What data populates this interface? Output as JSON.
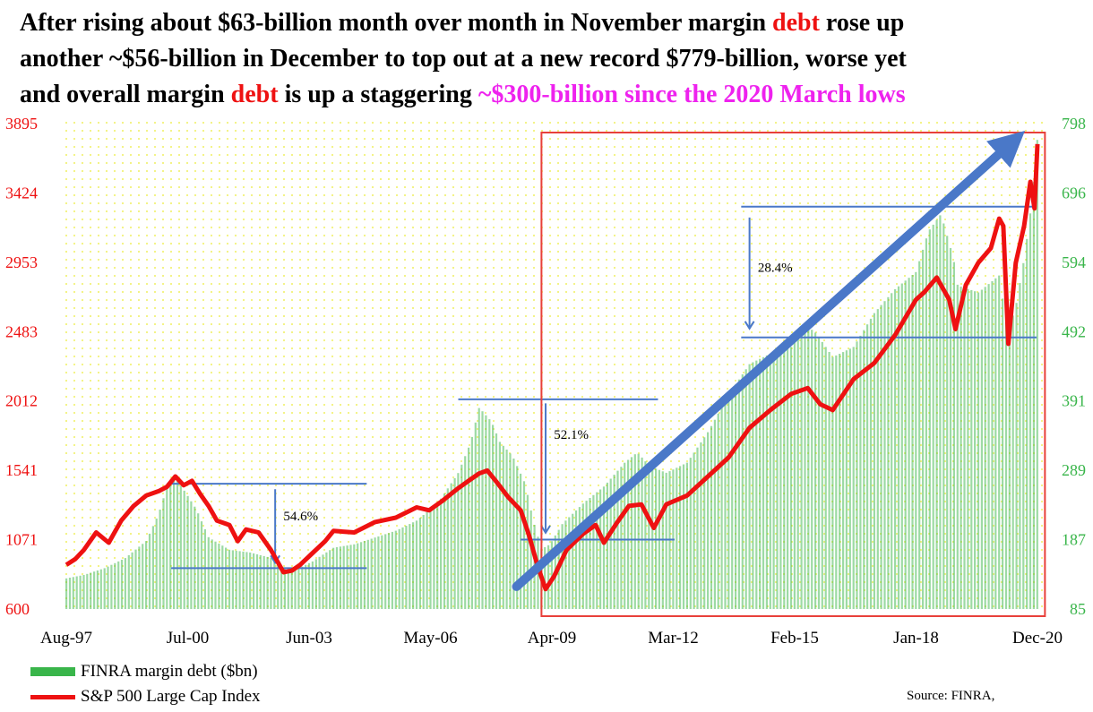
{
  "headline": {
    "line1_a": "After rising about $63-billion month over month in November margin ",
    "line1_b": "debt",
    "line1_c": " rose up",
    "line2": "another ~$56-billion in December to top out at a new record $779-billion, worse yet",
    "line3_a": "and overall margin ",
    "line3_b": "debt",
    "line3_c": " is up a staggering ",
    "line3_d": "~$300-billion since the 2020 March lows"
  },
  "colors": {
    "sp500_line": "#ee1111",
    "margin_bars": "#39b54a",
    "left_axis": "#ee1111",
    "right_axis": "#39b54a",
    "trend_arrow": "#4a78c8",
    "highlight_box": "#e8403a",
    "reference_lines": "#4a78c8",
    "background_dots": "#f2f27a"
  },
  "legend": {
    "bars": "FINRA margin debt ($bn)",
    "line": "S&P 500 Large Cap Index"
  },
  "source": "Source: FINRA,",
  "chart_data": {
    "type": "bar",
    "x_ticks": [
      "Aug-97",
      "Jul-00",
      "Jun-03",
      "May-06",
      "Apr-09",
      "Mar-12",
      "Feb-15",
      "Jan-18",
      "Dec-20"
    ],
    "x_range": [
      1997.58,
      2020.92
    ],
    "left_axis": {
      "ticks": [
        600,
        1071,
        1541,
        2012,
        2483,
        2953,
        3424,
        3895
      ],
      "range": [
        600,
        3895
      ]
    },
    "right_axis": {
      "ticks": [
        85,
        187,
        289,
        391,
        492,
        594,
        696,
        798
      ],
      "range": [
        85,
        798
      ]
    },
    "series": [
      {
        "name": "FINRA margin debt ($bn)",
        "type": "bar",
        "axis": "right",
        "x": [
          1997.58,
          1998.0,
          1998.5,
          1999.0,
          1999.5,
          1999.8,
          2000.0,
          2000.2,
          2000.4,
          2000.7,
          2001.0,
          2001.5,
          2002.0,
          2002.5,
          2002.8,
          2003.0,
          2003.5,
          2004.0,
          2004.5,
          2005.0,
          2005.5,
          2006.0,
          2006.5,
          2007.0,
          2007.3,
          2007.5,
          2007.8,
          2008.0,
          2008.3,
          2008.6,
          2008.8,
          2009.0,
          2009.2,
          2009.5,
          2010.0,
          2010.5,
          2011.0,
          2011.3,
          2011.6,
          2012.0,
          2012.5,
          2013.0,
          2013.5,
          2014.0,
          2014.5,
          2015.0,
          2015.3,
          2015.6,
          2016.0,
          2016.5,
          2017.0,
          2017.5,
          2018.0,
          2018.3,
          2018.6,
          2018.9,
          2019.0,
          2019.5,
          2020.0,
          2020.2,
          2020.4,
          2020.6,
          2020.8,
          2020.92
        ],
        "values": [
          130,
          135,
          145,
          160,
          185,
          225,
          265,
          278,
          260,
          232,
          190,
          172,
          168,
          160,
          145,
          140,
          155,
          175,
          180,
          190,
          200,
          215,
          240,
          285,
          330,
          381,
          360,
          330,
          310,
          270,
          215,
          173,
          180,
          210,
          240,
          265,
          300,
          315,
          295,
          285,
          300,
          345,
          400,
          445,
          460,
          470,
          505,
          490,
          455,
          470,
          520,
          555,
          580,
          640,
          665,
          600,
          560,
          550,
          575,
          490,
          530,
          600,
          690,
          779
        ]
      },
      {
        "name": "S&P 500 Large Cap Index",
        "type": "line",
        "axis": "left",
        "x": [
          1997.58,
          1997.8,
          1998.0,
          1998.3,
          1998.6,
          1998.9,
          1999.2,
          1999.5,
          1999.8,
          2000.0,
          2000.2,
          2000.4,
          2000.6,
          2000.8,
          2001.0,
          2001.2,
          2001.5,
          2001.7,
          2001.9,
          2002.2,
          2002.5,
          2002.8,
          2003.0,
          2003.2,
          2003.5,
          2003.8,
          2004.0,
          2004.5,
          2005.0,
          2005.5,
          2006.0,
          2006.3,
          2006.6,
          2007.0,
          2007.3,
          2007.5,
          2007.7,
          2007.9,
          2008.2,
          2008.5,
          2008.7,
          2008.9,
          2009.1,
          2009.3,
          2009.6,
          2010.0,
          2010.3,
          2010.5,
          2010.8,
          2011.1,
          2011.4,
          2011.7,
          2012.0,
          2012.5,
          2013.0,
          2013.5,
          2014.0,
          2014.5,
          2015.0,
          2015.4,
          2015.7,
          2016.0,
          2016.5,
          2017.0,
          2017.5,
          2018.0,
          2018.2,
          2018.5,
          2018.8,
          2018.95,
          2019.2,
          2019.5,
          2019.8,
          2020.0,
          2020.1,
          2020.22,
          2020.4,
          2020.6,
          2020.75,
          2020.85,
          2020.92
        ],
        "values": [
          900,
          940,
          1000,
          1120,
          1050,
          1200,
          1300,
          1370,
          1400,
          1430,
          1500,
          1440,
          1470,
          1380,
          1300,
          1200,
          1170,
          1060,
          1140,
          1120,
          1000,
          850,
          860,
          900,
          980,
          1060,
          1130,
          1120,
          1190,
          1220,
          1290,
          1270,
          1330,
          1420,
          1480,
          1520,
          1540,
          1470,
          1360,
          1270,
          1100,
          900,
          735,
          820,
          1000,
          1110,
          1170,
          1050,
          1180,
          1300,
          1310,
          1150,
          1310,
          1370,
          1500,
          1630,
          1830,
          1950,
          2060,
          2100,
          1990,
          1950,
          2160,
          2270,
          2460,
          2700,
          2750,
          2850,
          2700,
          2500,
          2800,
          2950,
          3050,
          3250,
          3200,
          2400,
          2950,
          3200,
          3500,
          3320,
          3756
        ]
      }
    ],
    "annotations": [
      {
        "text": "54.6%"
      },
      {
        "text": "52.1%"
      },
      {
        "text": "28.4%"
      }
    ]
  }
}
